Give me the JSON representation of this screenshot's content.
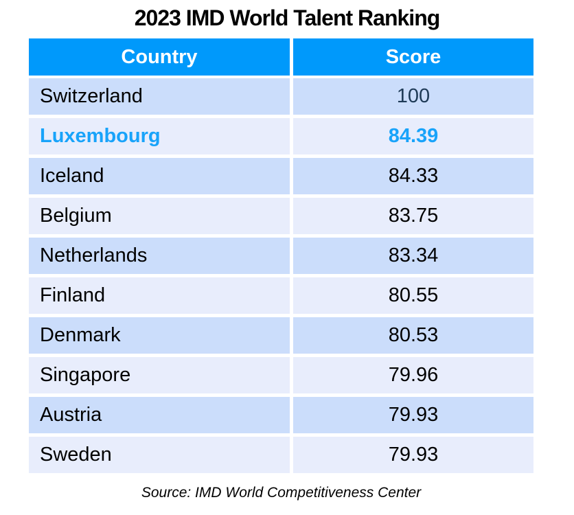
{
  "title": "2023 IMD World Talent Ranking",
  "table": {
    "headers": [
      "Country",
      "Score"
    ],
    "rows": [
      {
        "country": "Switzerland",
        "score": "100"
      },
      {
        "country": "Luxembourg",
        "score": "84.39"
      },
      {
        "country": "Iceland",
        "score": "84.33"
      },
      {
        "country": "Belgium",
        "score": "83.75"
      },
      {
        "country": "Netherlands",
        "score": "83.34"
      },
      {
        "country": "Finland",
        "score": "80.55"
      },
      {
        "country": "Denmark",
        "score": "80.53"
      },
      {
        "country": "Singapore",
        "score": "79.96"
      },
      {
        "country": "Austria",
        "score": "79.93"
      },
      {
        "country": "Sweden",
        "score": "79.93"
      }
    ]
  },
  "footer": {
    "source_text": "Source: IMD World Competitiveness Center"
  },
  "colors": {
    "header_bg": "#0099FB",
    "header_text": "#FFFFFF",
    "row_alt_dark": "#CBDDFB",
    "row_alt_light": "#E8EDFC",
    "highlight_text": "#18A3FA",
    "top_score_text": "#1E3A56",
    "body_text": "#000000"
  },
  "chart_data": {
    "type": "table",
    "title": "2023 IMD World Talent Ranking",
    "columns": [
      "Country",
      "Score"
    ],
    "categories": [
      "Switzerland",
      "Luxembourg",
      "Iceland",
      "Belgium",
      "Netherlands",
      "Finland",
      "Denmark",
      "Singapore",
      "Austria",
      "Sweden"
    ],
    "values": [
      100,
      84.39,
      84.33,
      83.75,
      83.34,
      80.55,
      80.53,
      79.96,
      79.93,
      79.93
    ],
    "highlighted_category": "Luxembourg",
    "source": "Source: IMD World Competitiveness Center",
    "legend_position": "none",
    "grid": false
  }
}
